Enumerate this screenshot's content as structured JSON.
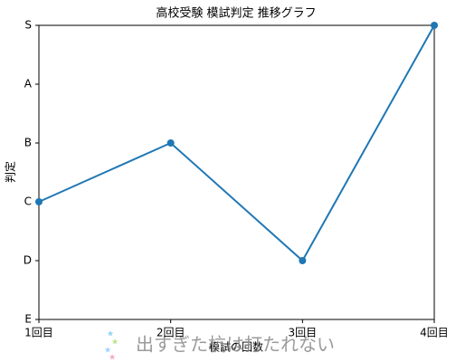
{
  "chart_data": {
    "type": "line",
    "title": "高校受験 模試判定 推移グラフ",
    "x_label": "模試の回数",
    "y_label": "判定",
    "categories": [
      "1回目",
      "2回目",
      "3回目",
      "4回目"
    ],
    "series": [
      {
        "name": "判定",
        "color": "#1f77b4",
        "values": [
          2,
          3,
          1,
          5
        ]
      }
    ],
    "ylim": [
      0,
      5
    ],
    "yticks": [
      {
        "value": 0,
        "label": "E"
      },
      {
        "value": 1,
        "label": "D"
      },
      {
        "value": 2,
        "label": "C"
      },
      {
        "value": 3,
        "label": "B"
      },
      {
        "value": 4,
        "label": "A"
      },
      {
        "value": 5,
        "label": "S"
      }
    ],
    "grid": false
  },
  "watermark": "出すぎた杭は打たれない"
}
